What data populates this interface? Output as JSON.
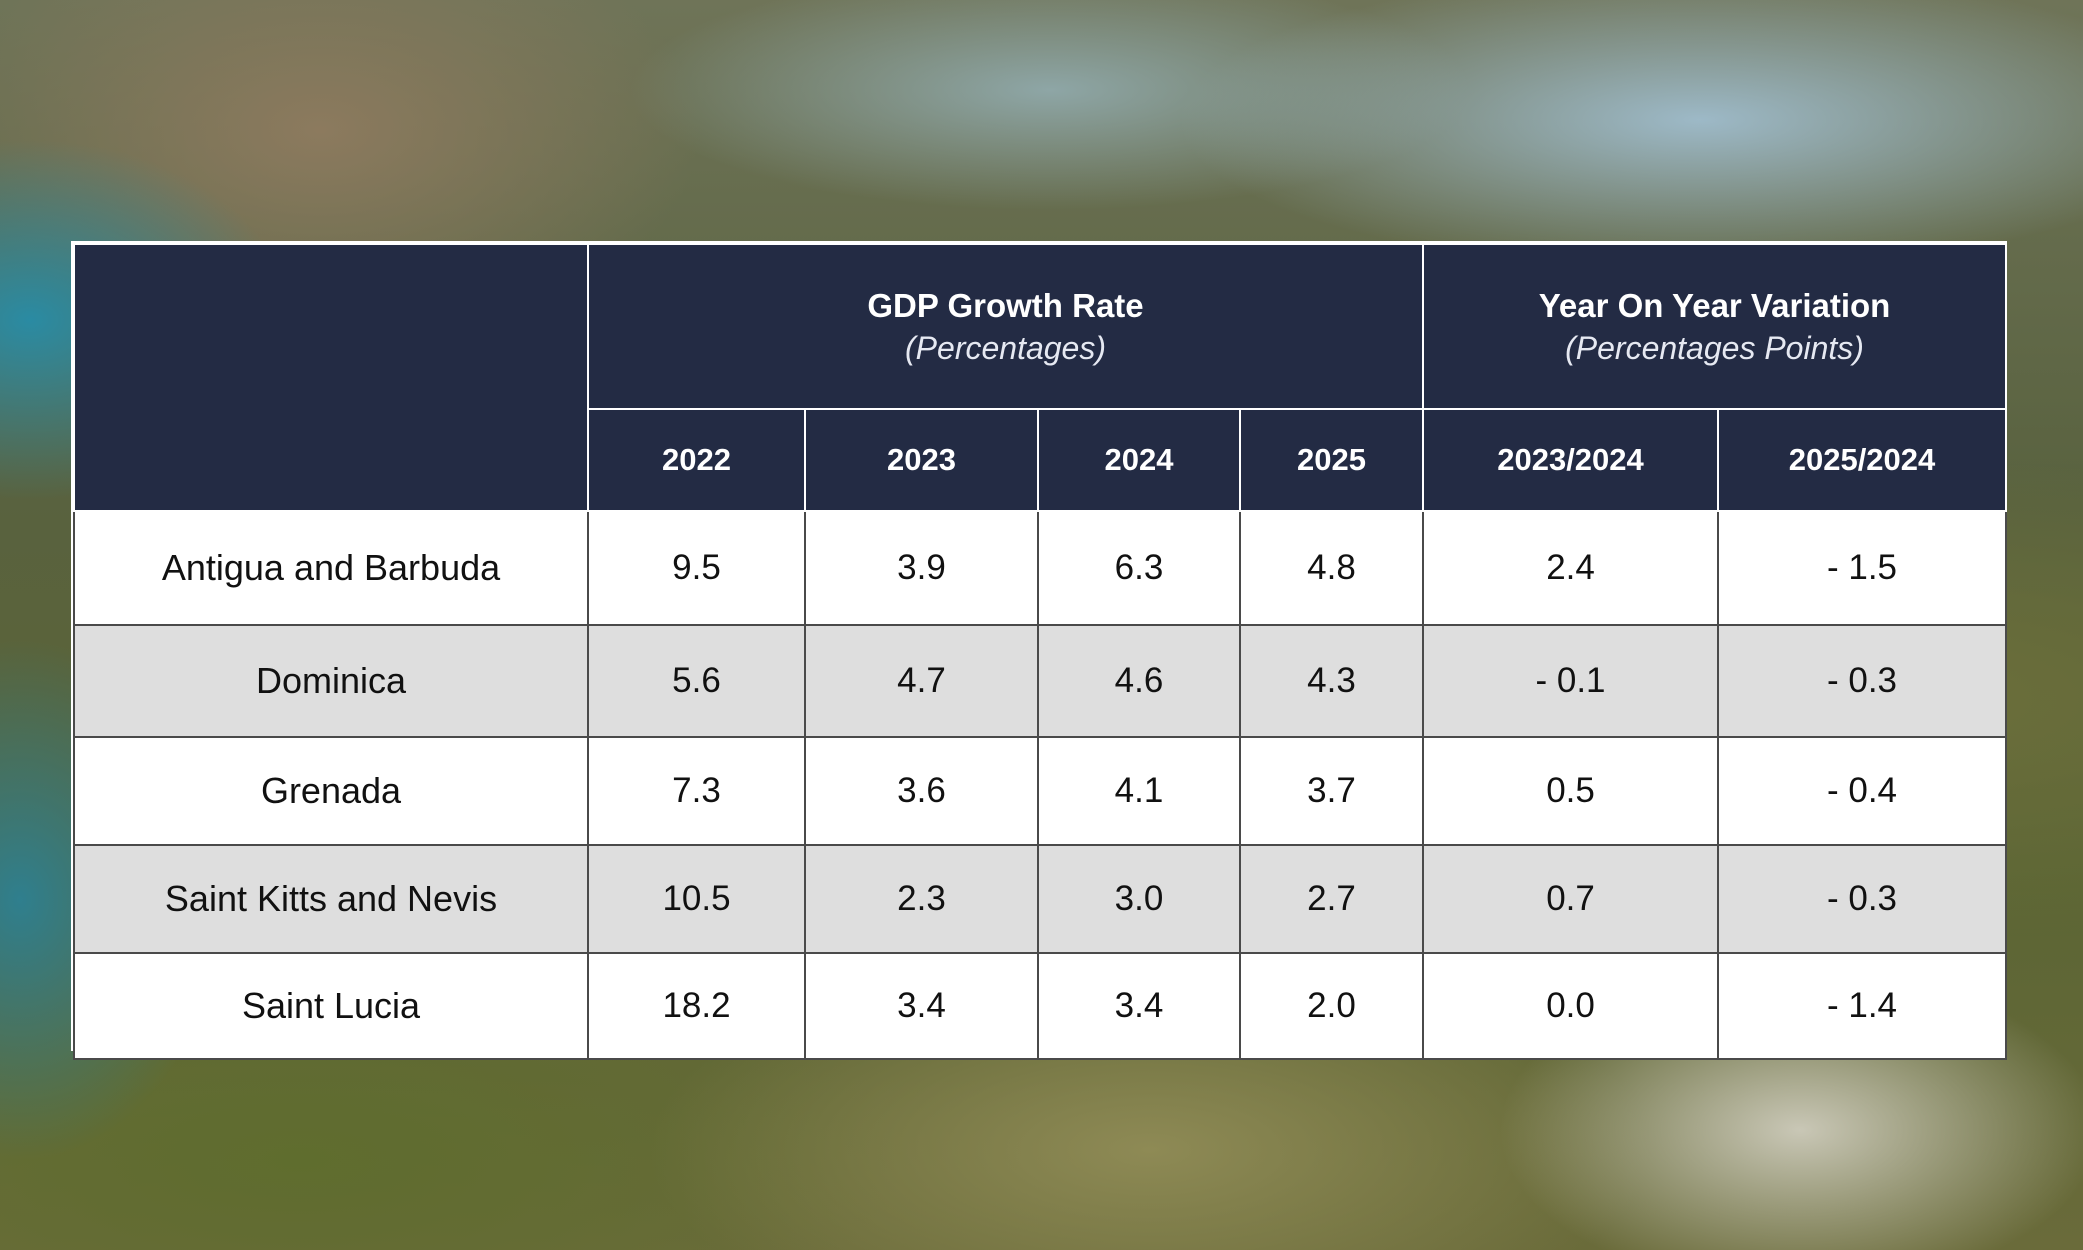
{
  "chart_data": {
    "type": "table",
    "title": "",
    "groups": [
      {
        "title": "GDP Growth Rate",
        "subtitle": "(Percentages)"
      },
      {
        "title": "Year On Year Variation",
        "subtitle": "(Percentages Points)"
      }
    ],
    "columns": [
      "2022",
      "2023",
      "2024",
      "2025",
      "2023/2024",
      "2025/2024"
    ],
    "rows": [
      {
        "country": "Antigua and Barbuda",
        "values": [
          "9.5",
          "3.9",
          "6.3",
          "4.8",
          "2.4",
          "- 1.5"
        ]
      },
      {
        "country": "Dominica",
        "values": [
          "5.6",
          "4.7",
          "4.6",
          "4.3",
          "- 0.1",
          "- 0.3"
        ]
      },
      {
        "country": "Grenada",
        "values": [
          "7.3",
          "3.6",
          "4.1",
          "3.7",
          "0.5",
          "- 0.4"
        ]
      },
      {
        "country": "Saint Kitts and Nevis",
        "values": [
          "10.5",
          "2.3",
          "3.0",
          "2.7",
          "0.7",
          "- 0.3"
        ]
      },
      {
        "country": "Saint Lucia",
        "values": [
          "18.2",
          "3.4",
          "3.4",
          "2.0",
          "0.0",
          "- 1.4"
        ]
      }
    ]
  },
  "colors": {
    "header_bg": "#232b44",
    "header_text": "#ffffff",
    "row_alt_bg": "#dedede",
    "row_bg": "#ffffff"
  }
}
